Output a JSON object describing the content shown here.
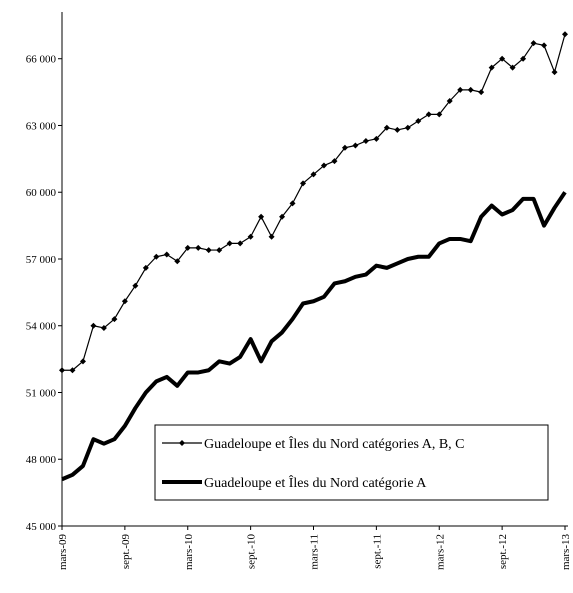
{
  "chart_data": {
    "type": "line",
    "categories": [
      "mars-09",
      null,
      null,
      null,
      null,
      null,
      "sept.-09",
      null,
      null,
      null,
      null,
      null,
      "mars-10",
      null,
      null,
      null,
      null,
      null,
      "sept.-10",
      null,
      null,
      null,
      null,
      null,
      "mars-11",
      null,
      null,
      null,
      null,
      null,
      "sept.-11",
      null,
      null,
      null,
      null,
      null,
      "mars-12",
      null,
      null,
      null,
      null,
      null,
      "sept.-12",
      null,
      null,
      null,
      null,
      null,
      "mars-13"
    ],
    "series": [
      {
        "name": "Guadeloupe et Îles du Nord catégories A, B, C",
        "color": "#000000",
        "markers": true,
        "width": 1.2,
        "values": [
          52000,
          52000,
          52400,
          54000,
          53900,
          54300,
          55100,
          55800,
          56600,
          57100,
          57200,
          56900,
          57500,
          57500,
          57400,
          57400,
          57700,
          57700,
          58000,
          58900,
          58000,
          58900,
          59500,
          60400,
          60800,
          61200,
          61400,
          62000,
          62100,
          62300,
          62400,
          62900,
          62800,
          62900,
          63200,
          63500,
          63500,
          64100,
          64600,
          64600,
          64500,
          65600,
          66000,
          65600,
          66000,
          66700,
          66600,
          65400,
          67100
        ]
      },
      {
        "name": "Guadeloupe et Îles du Nord catégorie A",
        "color": "#000000",
        "markers": false,
        "width": 4,
        "values": [
          47100,
          47300,
          47700,
          48900,
          48700,
          48900,
          49500,
          50300,
          51000,
          51500,
          51700,
          51300,
          51900,
          51900,
          52000,
          52400,
          52300,
          52600,
          53400,
          52400,
          53300,
          53700,
          54300,
          55000,
          55100,
          55300,
          55900,
          56000,
          56200,
          56300,
          56700,
          56600,
          56800,
          57000,
          57100,
          57100,
          57700,
          57900,
          57900,
          57800,
          58900,
          59400,
          59000,
          59200,
          59700,
          59700,
          58500,
          59300,
          60000
        ]
      }
    ],
    "ylim": [
      45000,
      68100
    ],
    "yticks": [
      {
        "value": 45000,
        "label": "45 000"
      },
      {
        "value": 48000,
        "label": "48 000"
      },
      {
        "value": 51000,
        "label": "51 000"
      },
      {
        "value": 54000,
        "label": "54 000"
      },
      {
        "value": 57000,
        "label": "57 000"
      },
      {
        "value": 60000,
        "label": "60 000"
      },
      {
        "value": 63000,
        "label": "63 000"
      },
      {
        "value": 66000,
        "label": "66 000"
      }
    ],
    "grid": false
  }
}
